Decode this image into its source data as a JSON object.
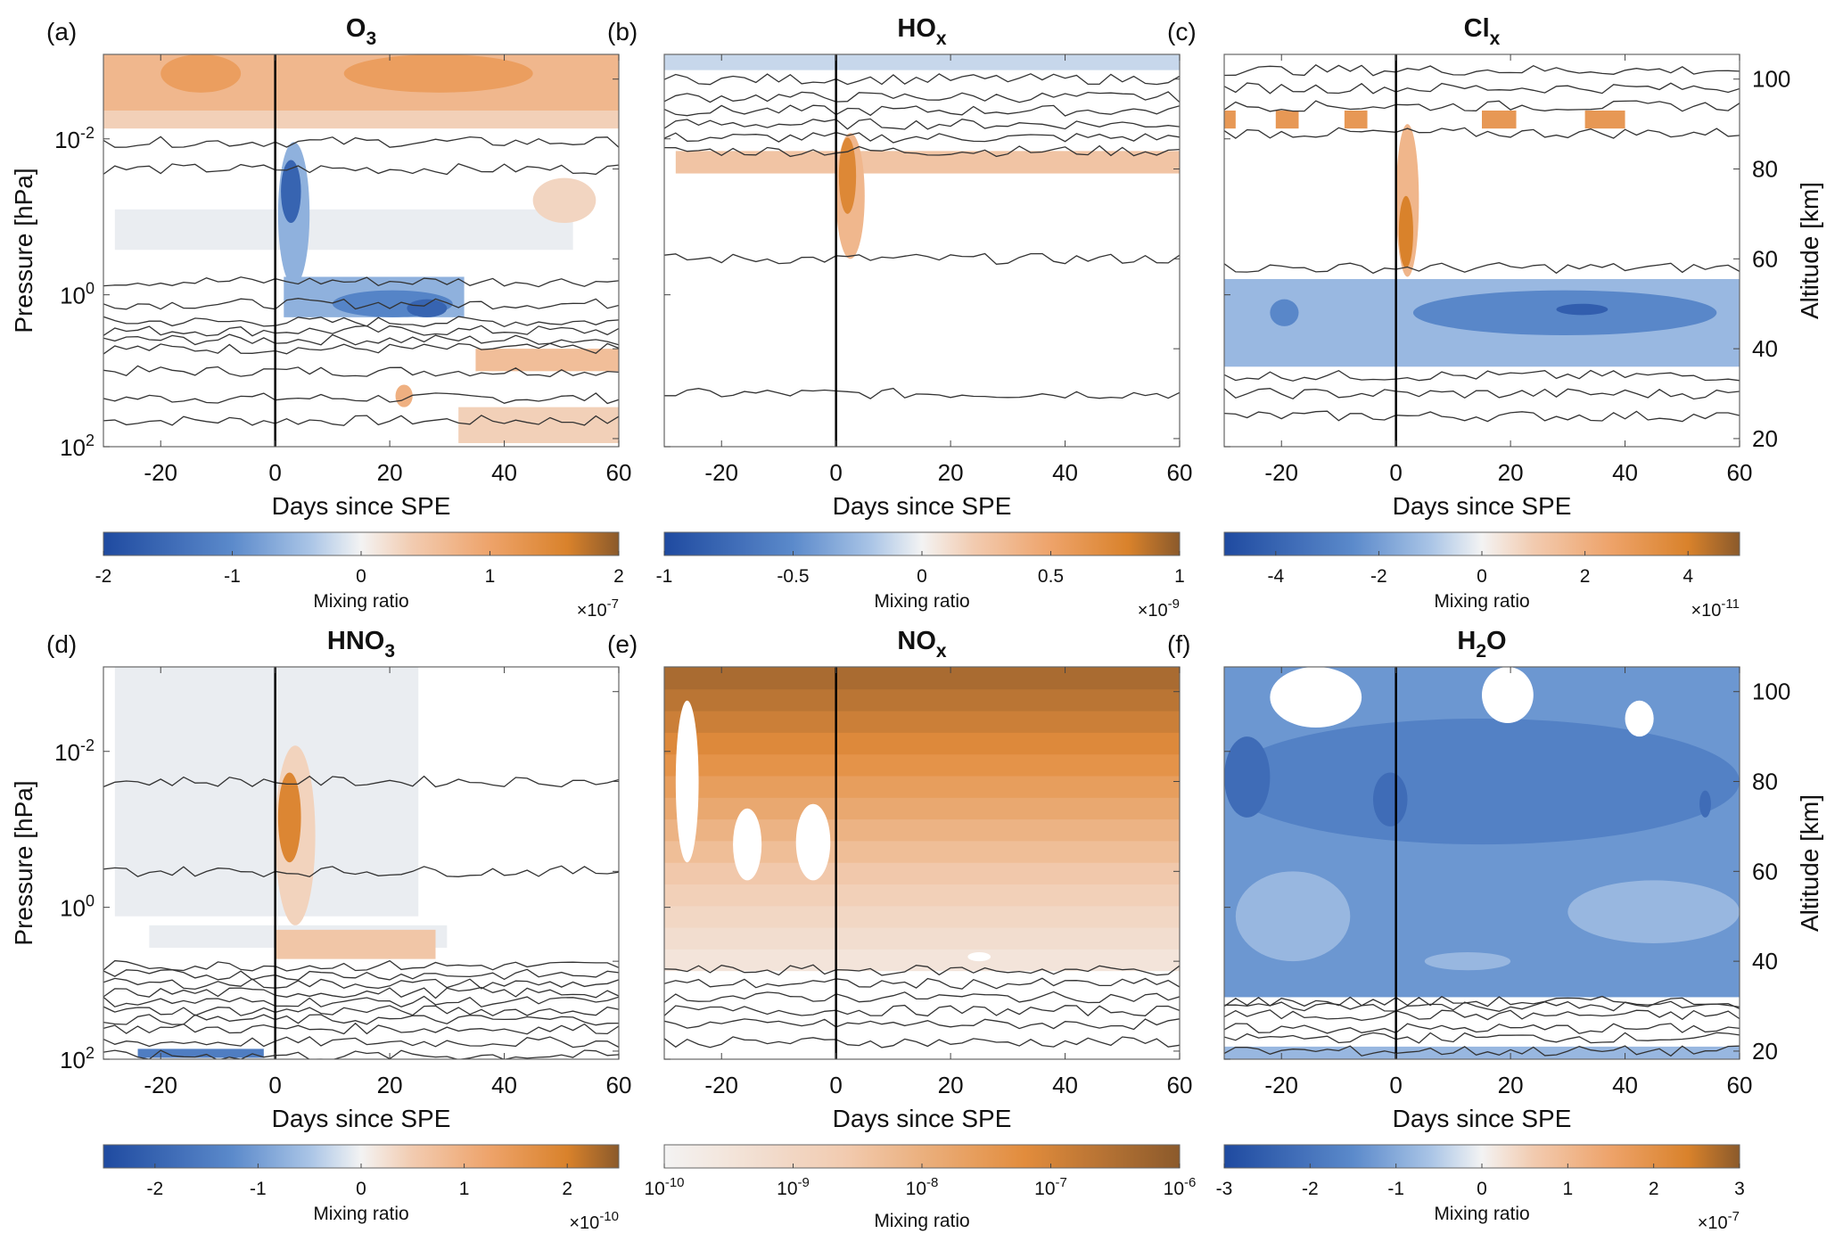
{
  "x_axis": {
    "label": "Days since SPE",
    "range": [
      -30,
      60
    ],
    "ticks": [
      "-20",
      "0",
      "20",
      "40",
      "60"
    ],
    "tick_values": [
      -20,
      0,
      20,
      40,
      60
    ]
  },
  "y_left": {
    "label": "Pressure [hPa]",
    "ticks": [
      {
        "base": "10",
        "exp": "-2",
        "alt": 86.7
      },
      {
        "base": "10",
        "exp": "0",
        "alt": 52
      },
      {
        "base": "10",
        "exp": "2",
        "alt": 18.2
      }
    ]
  },
  "y_right": {
    "label": "Altitude [km]",
    "range": [
      18.2,
      105.5
    ],
    "ticks": [
      "20",
      "40",
      "60",
      "80",
      "100"
    ],
    "tick_values": [
      20,
      40,
      60,
      80,
      100
    ]
  },
  "event_day": 0,
  "chart_data": [
    {
      "type": "heatmap",
      "panel": "(a)",
      "title_main": "O",
      "title_sub": "3",
      "colorbar": {
        "label": "Mixing ratio",
        "range": [
          -2,
          2
        ],
        "ticks": [
          "-2",
          "-1",
          "0",
          "1",
          "2"
        ],
        "tick_values": [
          -2,
          -1,
          0,
          1,
          2
        ],
        "mult_base": "×10",
        "mult_exp": "-7"
      },
      "features": [
        {
          "shape": "box",
          "days": [
            -30,
            60
          ],
          "alt": [
            89,
            105.5
          ],
          "value": 0.35
        },
        {
          "shape": "box",
          "days": [
            -30,
            60
          ],
          "alt": [
            93,
            105.5
          ],
          "value": 0.7
        },
        {
          "shape": "blob",
          "days": [
            -20,
            -6
          ],
          "alt": [
            97,
            105.5
          ],
          "value": 1.1
        },
        {
          "shape": "blob",
          "days": [
            12,
            45
          ],
          "alt": [
            97,
            105.5
          ],
          "value": 1.1
        },
        {
          "shape": "box",
          "days": [
            -28,
            52
          ],
          "alt": [
            62,
            71
          ],
          "value": -0.05
        },
        {
          "shape": "blob",
          "days": [
            45,
            56
          ],
          "alt": [
            68,
            78
          ],
          "value": 0.3
        },
        {
          "shape": "blob",
          "days": [
            0.5,
            6
          ],
          "alt": [
            54,
            86
          ],
          "value": -0.6
        },
        {
          "shape": "blob",
          "days": [
            1,
            4.5
          ],
          "alt": [
            68,
            82
          ],
          "value": -1.6
        },
        {
          "shape": "box",
          "days": [
            1.5,
            33
          ],
          "alt": [
            47,
            56
          ],
          "value": -0.6
        },
        {
          "shape": "blob",
          "days": [
            10,
            31
          ],
          "alt": [
            47,
            53
          ],
          "value": -1.1
        },
        {
          "shape": "blob",
          "days": [
            23,
            30
          ],
          "alt": [
            47,
            51
          ],
          "value": -1.6
        },
        {
          "shape": "box",
          "days": [
            35,
            60
          ],
          "alt": [
            35,
            40
          ],
          "value": 0.6
        },
        {
          "shape": "box",
          "days": [
            32,
            60
          ],
          "alt": [
            19,
            27
          ],
          "value": 0.35
        },
        {
          "shape": "blob",
          "days": [
            21,
            24
          ],
          "alt": [
            27,
            32
          ],
          "value": 0.8
        }
      ],
      "contours": [
        24,
        29,
        35,
        40,
        42,
        44,
        46,
        50,
        55,
        80,
        86
      ]
    },
    {
      "type": "heatmap",
      "panel": "(b)",
      "title_main": "HO",
      "title_sub": "x",
      "colorbar": {
        "label": "Mixing ratio",
        "range": [
          -1,
          1
        ],
        "ticks": [
          "-1",
          "-0.5",
          "0",
          "0.5",
          "1"
        ],
        "tick_values": [
          -1,
          -0.5,
          0,
          0.5,
          1
        ],
        "mult_base": "×10",
        "mult_exp": "-9"
      },
      "features": [
        {
          "shape": "box",
          "days": [
            -30,
            60
          ],
          "alt": [
            102,
            105.5
          ],
          "value": -0.12
        },
        {
          "shape": "box",
          "days": [
            -28,
            60
          ],
          "alt": [
            79,
            84
          ],
          "value": 0.25
        },
        {
          "shape": "blob",
          "days": [
            0,
            5
          ],
          "alt": [
            60,
            88
          ],
          "value": 0.35
        },
        {
          "shape": "blob",
          "days": [
            0.5,
            3.5
          ],
          "alt": [
            70,
            87
          ],
          "value": 0.75
        }
      ],
      "contours": [
        30,
        60,
        84,
        87,
        90,
        93,
        96,
        100
      ]
    },
    {
      "type": "heatmap",
      "panel": "(c)",
      "title_main": "Cl",
      "title_sub": "x",
      "colorbar": {
        "label": "Mixing ratio",
        "range": [
          -5,
          5
        ],
        "ticks": [
          "-4",
          "-2",
          "0",
          "2",
          "4"
        ],
        "tick_values": [
          -4,
          -2,
          0,
          2,
          4
        ],
        "mult_base": "×10",
        "mult_exp": "-11"
      },
      "features": [
        {
          "shape": "box",
          "days": [
            -30,
            60
          ],
          "alt": [
            36,
            55.5
          ],
          "value": -1.3
        },
        {
          "shape": "blob",
          "days": [
            3,
            56
          ],
          "alt": [
            43,
            53
          ],
          "value": -2.6
        },
        {
          "shape": "blob",
          "days": [
            28,
            37
          ],
          "alt": [
            47.5,
            50
          ],
          "value": -4.2
        },
        {
          "shape": "blob",
          "days": [
            -22,
            -17
          ],
          "alt": [
            45,
            51
          ],
          "value": -2.6
        },
        {
          "shape": "box",
          "days": [
            -30,
            -28
          ],
          "alt": [
            89,
            93
          ],
          "value": 3
        },
        {
          "shape": "box",
          "days": [
            -21,
            -17
          ],
          "alt": [
            89,
            93
          ],
          "value": 3
        },
        {
          "shape": "box",
          "days": [
            -9,
            -5
          ],
          "alt": [
            89,
            93
          ],
          "value": 3
        },
        {
          "shape": "box",
          "days": [
            15,
            21
          ],
          "alt": [
            89,
            93
          ],
          "value": 3
        },
        {
          "shape": "box",
          "days": [
            33,
            40
          ],
          "alt": [
            89,
            93
          ],
          "value": 3
        },
        {
          "shape": "blob",
          "days": [
            0,
            4
          ],
          "alt": [
            56,
            90
          ],
          "value": 1.8
        },
        {
          "shape": "blob",
          "days": [
            0.5,
            3
          ],
          "alt": [
            58,
            74
          ],
          "value": 4
        }
      ],
      "contours": [
        25,
        30,
        34,
        58,
        88,
        94,
        98,
        102
      ]
    },
    {
      "type": "heatmap",
      "panel": "(d)",
      "title_main": "HNO",
      "title_sub": "3",
      "colorbar": {
        "label": "Mixing ratio",
        "range": [
          -2.5,
          2.5
        ],
        "ticks": [
          "-2",
          "-1",
          "0",
          "1",
          "2"
        ],
        "tick_values": [
          -2,
          -1,
          0,
          1,
          2
        ],
        "mult_base": "×10",
        "mult_exp": "-10"
      },
      "features": [
        {
          "shape": "box",
          "days": [
            -28,
            25
          ],
          "alt": [
            50,
            105.5
          ],
          "value": -0.06
        },
        {
          "shape": "box",
          "days": [
            -22,
            30
          ],
          "alt": [
            43,
            48
          ],
          "value": -0.06
        },
        {
          "shape": "blob",
          "days": [
            0,
            7
          ],
          "alt": [
            48,
            88
          ],
          "value": 0.4
        },
        {
          "shape": "blob",
          "days": [
            0.5,
            4.5
          ],
          "alt": [
            62,
            82
          ],
          "value": 1.9
        },
        {
          "shape": "box",
          "days": [
            0,
            28
          ],
          "alt": [
            40.5,
            47
          ],
          "value": 0.6
        },
        {
          "shape": "box",
          "days": [
            -24,
            -2
          ],
          "alt": [
            18.5,
            20.5
          ],
          "value": -1.5
        }
      ],
      "contours": [
        19,
        22,
        25,
        27,
        29,
        31,
        33,
        35,
        37,
        39,
        60,
        80
      ]
    },
    {
      "type": "heatmap",
      "panel": "(e)",
      "title_main": "NO",
      "title_sub": "x",
      "scale": "log",
      "colorbar": {
        "label": "Mixing ratio",
        "range": [
          -10,
          -6
        ],
        "ticks": [
          "-10",
          "-9",
          "-8",
          "-7",
          "-6"
        ],
        "tick_values": [
          -10,
          -9,
          -8,
          -7,
          -6
        ],
        "tick_base": "10",
        "log": true
      },
      "gradient": {
        "alt": [
          38,
          105.5
        ],
        "log_value": [
          -9.6,
          -6.3
        ]
      },
      "holes": [
        {
          "days": [
            -28,
            -24
          ],
          "alt": [
            62,
            98
          ]
        },
        {
          "days": [
            -18,
            -13
          ],
          "alt": [
            58,
            74
          ]
        },
        {
          "days": [
            -7,
            -1
          ],
          "alt": [
            58,
            75
          ]
        },
        {
          "days": [
            23,
            27
          ],
          "alt": [
            40,
            42
          ]
        }
      ],
      "contours": [
        22,
        26,
        29,
        32,
        35,
        38
      ]
    },
    {
      "type": "heatmap",
      "panel": "(f)",
      "title_main": "H",
      "title_sub": "2",
      "title_tail": "O",
      "colorbar": {
        "label": "Mixing ratio",
        "range": [
          -3,
          3
        ],
        "ticks": [
          "-3",
          "-2",
          "-1",
          "0",
          "1",
          "2",
          "3"
        ],
        "tick_values": [
          -3,
          -2,
          -1,
          0,
          1,
          2,
          3
        ],
        "mult_base": "×10",
        "mult_exp": "-7"
      },
      "features": [
        {
          "shape": "box",
          "days": [
            -30,
            60
          ],
          "alt": [
            32,
            105.5
          ],
          "value": -1.3
        },
        {
          "shape": "box",
          "days": [
            -30,
            60
          ],
          "alt": [
            18.2,
            21
          ],
          "value": -0.8
        },
        {
          "shape": "blob",
          "days": [
            -28,
            -8
          ],
          "alt": [
            40,
            60
          ],
          "value": -0.8
        },
        {
          "shape": "blob",
          "days": [
            30,
            60
          ],
          "alt": [
            44,
            58
          ],
          "value": -0.8
        },
        {
          "shape": "blob",
          "days": [
            -30,
            60
          ],
          "alt": [
            66,
            94
          ],
          "value": -1.7
        },
        {
          "shape": "blob",
          "days": [
            -30,
            -22
          ],
          "alt": [
            72,
            90
          ],
          "value": -2.2
        },
        {
          "shape": "blob",
          "days": [
            -4,
            2
          ],
          "alt": [
            70,
            82
          ],
          "value": -2.2
        },
        {
          "shape": "blob",
          "days": [
            53,
            55
          ],
          "alt": [
            72,
            78
          ],
          "value": -2.2
        },
        {
          "shape": "blob",
          "days": [
            5,
            20
          ],
          "alt": [
            38,
            42
          ],
          "value": -0.8
        }
      ],
      "holes": [
        {
          "days": [
            -22,
            -6
          ],
          "alt": [
            92,
            105.5
          ]
        },
        {
          "days": [
            15,
            24
          ],
          "alt": [
            93,
            105.5
          ]
        },
        {
          "days": [
            40,
            45
          ],
          "alt": [
            90,
            98
          ]
        }
      ],
      "contours": [
        20,
        23,
        25,
        28,
        30,
        31
      ]
    }
  ]
}
